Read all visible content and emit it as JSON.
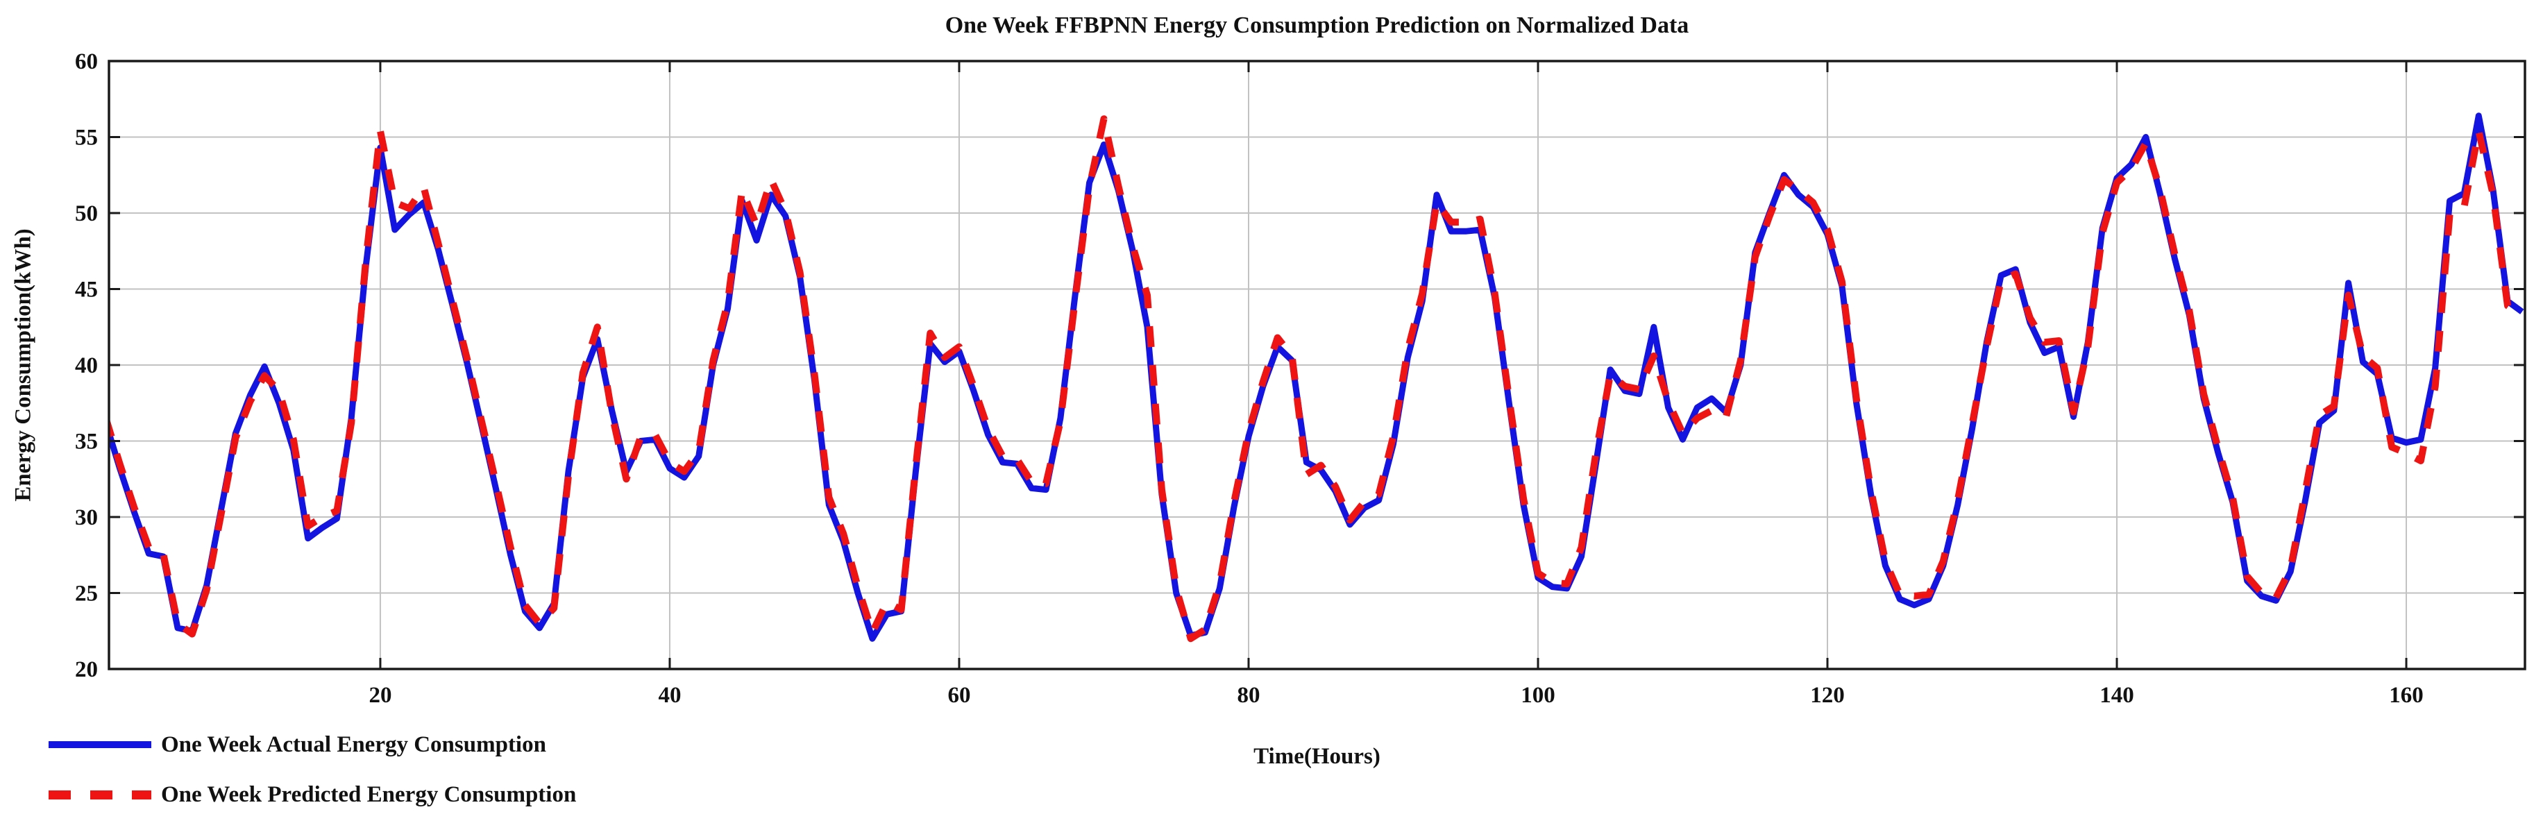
{
  "title": "One Week FFBPNN Energy Consumption Prediction on Normalized Data",
  "axes": {
    "x_label": "Time(Hours)",
    "y_label": "Energy Consumption(kWh)",
    "x_ticks": [
      20,
      40,
      60,
      80,
      100,
      120,
      140,
      160
    ],
    "y_ticks": [
      20,
      25,
      30,
      35,
      40,
      45,
      50,
      55,
      60
    ],
    "x_range": [
      1.25,
      168.2
    ],
    "y_range": [
      20,
      60
    ],
    "grid": true
  },
  "colors": {
    "actual": "#1414e0",
    "predicted": "#ee1414",
    "gridline": "#c2c2c2",
    "axis_border": "#1a1a1a",
    "background": "#ffffff"
  },
  "legend": {
    "position": "bottom-left-outside",
    "items": [
      {
        "label": "One Week Actual Energy Consumption",
        "style": "solid",
        "color": "#1414e0"
      },
      {
        "label": "One Week Predicted Energy Consumption",
        "style": "dashed",
        "color": "#ee1414"
      }
    ]
  },
  "chart_data": {
    "type": "line",
    "title": "One Week FFBPNN Energy Consumption Prediction on Normalized Data",
    "xlabel": "Time(Hours)",
    "ylabel": "Energy Consumption(kWh)",
    "xlim": [
      1.25,
      168.2
    ],
    "ylim": [
      20,
      60
    ],
    "x_start": 1,
    "x_step": 1,
    "n_points": 168,
    "series": [
      {
        "name": "One Week Actual Energy Consumption",
        "color": "#1414e0",
        "dash": "none",
        "width": 9,
        "values": [
          36.3,
          33.2,
          30.3,
          27.6,
          27.4,
          22.7,
          22.5,
          25.5,
          30.5,
          35.5,
          38.0,
          39.9,
          37.5,
          34.4,
          28.6,
          29.3,
          29.9,
          36.5,
          46.5,
          54.3,
          48.9,
          49.9,
          50.7,
          47.6,
          43.9,
          40.1,
          36.0,
          31.8,
          27.5,
          23.8,
          22.7,
          24.3,
          33.0,
          39.2,
          41.7,
          37.0,
          33.0,
          35.0,
          35.1,
          33.2,
          32.6,
          34.0,
          40.0,
          43.7,
          50.8,
          48.2,
          51.2,
          49.8,
          45.8,
          39.0,
          30.8,
          28.4,
          25.0,
          22.0,
          23.6,
          23.8,
          33.0,
          41.4,
          40.2,
          40.9,
          38.3,
          35.4,
          33.6,
          33.5,
          31.9,
          31.8,
          36.5,
          44.5,
          52.0,
          54.5,
          51.5,
          47.5,
          42.5,
          31.5,
          25.0,
          22.2,
          22.4,
          25.3,
          30.7,
          35.3,
          38.6,
          41.2,
          40.3,
          33.6,
          33.1,
          31.7,
          29.5,
          30.6,
          31.1,
          34.8,
          40.5,
          44.2,
          51.2,
          48.8,
          48.8,
          48.9,
          44.5,
          37.5,
          30.8,
          26.0,
          25.4,
          25.3,
          27.4,
          33.5,
          39.7,
          38.3,
          38.1,
          42.5,
          37.2,
          35.1,
          37.2,
          37.8,
          36.9,
          40.0,
          47.4,
          50.0,
          52.5,
          51.2,
          50.4,
          48.6,
          45.2,
          37.5,
          31.5,
          26.8,
          24.6,
          24.2,
          24.6,
          26.8,
          30.8,
          35.8,
          41.5,
          45.9,
          46.3,
          42.8,
          40.8,
          41.2,
          36.6,
          41.5,
          49.0,
          52.3,
          53.2,
          55.0,
          51.2,
          47.0,
          43.3,
          37.8,
          34.2,
          31.0,
          25.8,
          24.8,
          24.5,
          26.4,
          31.0,
          36.2,
          37.0,
          45.4,
          40.2,
          39.4,
          35.2,
          34.9,
          35.1,
          39.8,
          50.8,
          51.3,
          56.4,
          51.5,
          44.2,
          43.5
        ]
      },
      {
        "name": "One Week Predicted Energy Consumption",
        "color": "#ee1414",
        "dash": "30 26",
        "width": 10,
        "values": [
          36.6,
          33.5,
          30.6,
          28.0,
          27.6,
          23.0,
          22.3,
          25.2,
          30.2,
          35.2,
          37.6,
          39.3,
          38.3,
          35.1,
          29.4,
          30.0,
          30.4,
          36.2,
          46.9,
          55.4,
          50.7,
          50.3,
          51.7,
          48.0,
          44.2,
          40.4,
          36.3,
          32.2,
          28.0,
          24.2,
          23.0,
          24.0,
          32.7,
          39.5,
          42.5,
          36.8,
          32.5,
          35.3,
          35.4,
          33.6,
          33.0,
          34.3,
          40.3,
          44.1,
          51.5,
          49.2,
          52.2,
          50.1,
          46.1,
          39.4,
          31.3,
          28.9,
          25.4,
          22.4,
          24.4,
          23.9,
          33.3,
          42.1,
          40.5,
          41.2,
          38.6,
          35.8,
          34.0,
          33.8,
          32.3,
          32.2,
          36.3,
          44.2,
          51.7,
          56.2,
          51.8,
          47.8,
          44.6,
          31.8,
          25.3,
          22.0,
          22.6,
          25.6,
          31.0,
          35.6,
          38.9,
          41.8,
          40.6,
          32.8,
          33.4,
          32.0,
          29.8,
          31.0,
          31.5,
          35.3,
          41.0,
          44.7,
          50.7,
          49.4,
          49.4,
          49.6,
          44.8,
          37.8,
          31.2,
          26.3,
          25.7,
          25.6,
          28.0,
          34.2,
          39.4,
          38.6,
          38.4,
          40.6,
          37.6,
          35.5,
          36.5,
          37.0,
          36.6,
          40.3,
          47.1,
          49.8,
          52.2,
          51.5,
          50.7,
          48.9,
          45.5,
          37.8,
          31.8,
          27.1,
          24.9,
          24.8,
          24.9,
          27.1,
          31.1,
          36.1,
          41.2,
          45.6,
          46.0,
          43.1,
          41.5,
          41.6,
          36.9,
          41.2,
          48.7,
          52.0,
          52.9,
          54.6,
          51.5,
          47.3,
          43.6,
          38.1,
          34.5,
          31.3,
          26.1,
          25.0,
          24.7,
          26.6,
          31.6,
          36.7,
          37.3,
          44.6,
          40.6,
          39.8,
          34.6,
          34.2,
          33.7,
          38.6,
          49.9,
          50.4,
          55.4,
          51.2,
          43.9,
          43.2
        ]
      }
    ]
  }
}
